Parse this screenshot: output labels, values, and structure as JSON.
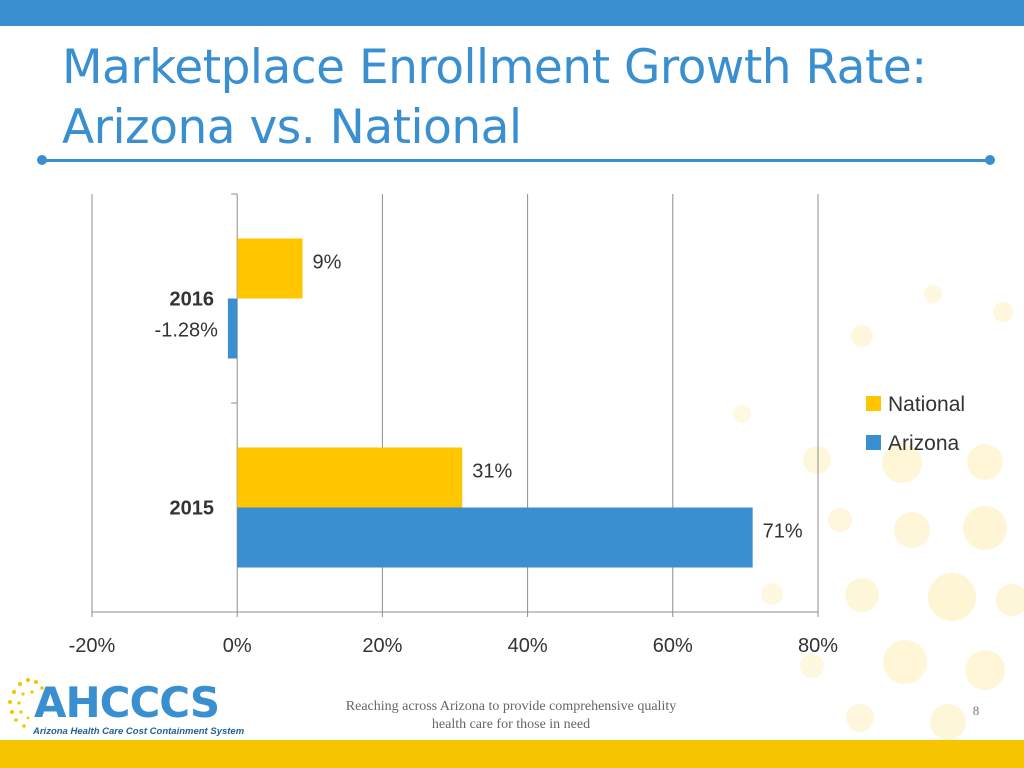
{
  "slide": {
    "title": "Marketplace Enrollment Growth Rate: Arizona vs. National",
    "footer_text": "Reaching across Arizona to provide comprehensive quality health care for those in need",
    "page_number": "8",
    "logo": {
      "name": "AHCCCS",
      "subtitle": "Arizona Health Care Cost Containment System"
    },
    "colors": {
      "top_bar": "#3a8fd1",
      "bottom_bar": "#f6c400",
      "title": "#3a8fd1"
    }
  },
  "chart_data": {
    "type": "bar",
    "orientation": "horizontal",
    "categories": [
      "2016",
      "2015"
    ],
    "series": [
      {
        "name": "National",
        "color": "#ffc600",
        "values": [
          9,
          31
        ],
        "labels": [
          "9%",
          "31%"
        ]
      },
      {
        "name": "Arizona",
        "color": "#3a8fd1",
        "values": [
          -1.28,
          71
        ],
        "labels": [
          "-1.28%",
          "71%"
        ]
      }
    ],
    "xlim": [
      -20,
      80
    ],
    "xticks": [
      -20,
      0,
      20,
      40,
      60,
      80
    ],
    "xtick_labels": [
      "-20%",
      "0%",
      "20%",
      "40%",
      "60%",
      "80%"
    ],
    "grid": true,
    "legend": {
      "position": "right",
      "entries": [
        "National",
        "Arizona"
      ]
    }
  }
}
